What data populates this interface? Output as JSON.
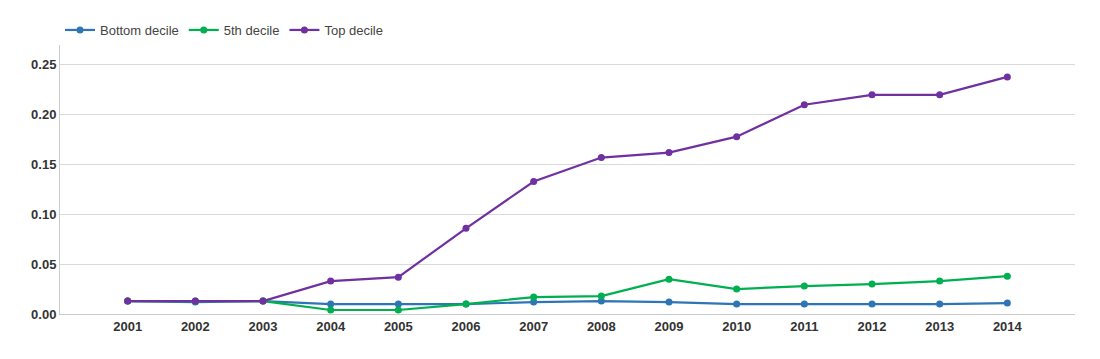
{
  "chart_data": {
    "type": "line",
    "x": [
      2001,
      2002,
      2003,
      2004,
      2005,
      2006,
      2007,
      2008,
      2009,
      2010,
      2011,
      2012,
      2013,
      2014
    ],
    "series": [
      {
        "name": "Bottom decile",
        "color": "#2E75B6",
        "marker": "circle",
        "line_style": "solid",
        "values": [
          0.013,
          0.012,
          0.013,
          0.01,
          0.01,
          0.01,
          0.012,
          0.013,
          0.012,
          0.01,
          0.01,
          0.01,
          0.01,
          0.011
        ]
      },
      {
        "name": "5th decile",
        "color": "#00B050",
        "marker": "circle",
        "line_style": "solid",
        "values": [
          0.013,
          0.013,
          0.013,
          0.004,
          0.004,
          0.01,
          0.017,
          0.018,
          0.035,
          0.025,
          0.028,
          0.03,
          0.033,
          0.038
        ]
      },
      {
        "name": "Top decile",
        "color": "#7030A0",
        "marker": "circle",
        "line_style": "solid",
        "values": [
          0.013,
          0.013,
          0.013,
          0.033,
          0.037,
          0.086,
          0.133,
          0.157,
          0.162,
          0.178,
          0.21,
          0.22,
          0.22,
          0.238
        ]
      }
    ],
    "xlim": [
      2000,
      2015
    ],
    "xticks": [
      2001,
      2002,
      2003,
      2004,
      2005,
      2006,
      2007,
      2008,
      2009,
      2010,
      2011,
      2012,
      2013,
      2014
    ],
    "ylim": [
      0,
      0.27
    ],
    "yticks": [
      {
        "value": 0,
        "label": "0.00"
      },
      0.05,
      {
        "value": 0.1,
        "label": "0.10"
      },
      0.15,
      {
        "value": 0.2,
        "label": "0.20"
      },
      0.25
    ],
    "grid": true,
    "legend": "upper left"
  }
}
